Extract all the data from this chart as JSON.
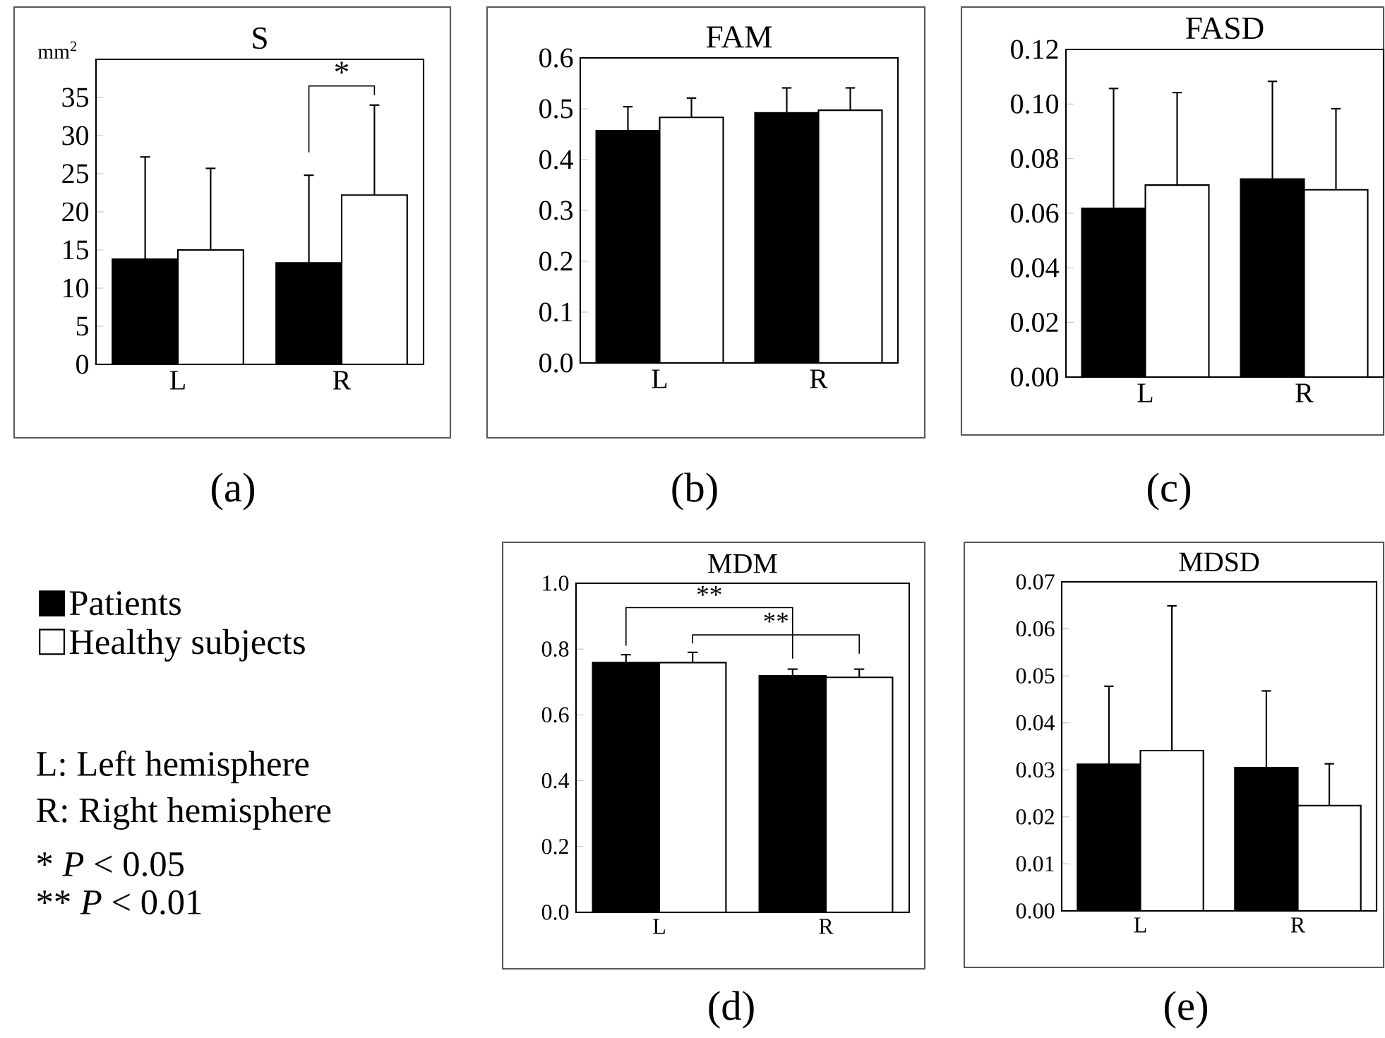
{
  "chart_data": [
    {
      "type": "bar",
      "title": "S",
      "ylabel": "mm$^{2}$",
      "xlabel": "(a)",
      "categories": [
        "L",
        "R"
      ],
      "series": [
        {
          "color": "#000000",
          "values": [
            13.8,
            13.3
          ],
          "errors": [
            [
              13.8,
              27.2
            ],
            [
              13.3,
              24.8
            ]
          ]
        },
        {
          "color": "#ffffff",
          "values": [
            15.0,
            22.2
          ],
          "errors": [
            [
              15.0,
              25.7
            ],
            [
              22.2,
              34.0
            ]
          ]
        }
      ],
      "ylim": [
        0,
        40
      ],
      "yticks": [
        0,
        5,
        10,
        15,
        20,
        25,
        30,
        35
      ],
      "annotations": [
        "*"
      ]
    },
    {
      "type": "bar",
      "title": "FAM",
      "xlabel": "(b)",
      "categories": [
        "L",
        "R"
      ],
      "series": [
        {
          "color": "#000000",
          "values": [
            0.457,
            0.492
          ],
          "errors": [
            [
              0.457,
              0.504
            ],
            [
              0.492,
              0.541
            ]
          ]
        },
        {
          "color": "#ffffff",
          "values": [
            0.483,
            0.497
          ],
          "errors": [
            [
              0.483,
              0.521
            ],
            [
              0.497,
              0.541
            ]
          ]
        }
      ],
      "ylim": [
        0,
        0.6
      ],
      "yticks": [
        {
          "value": 0,
          "label": "0.0"
        },
        0.1,
        0.2,
        0.3,
        0.4,
        0.5,
        0.6
      ]
    },
    {
      "type": "bar",
      "title": "FASD",
      "xlabel": "(c)",
      "categories": [
        "L",
        "R"
      ],
      "series": [
        {
          "color": "#000000",
          "values": [
            0.0618,
            0.0725
          ],
          "errors": [
            [
              0.0618,
              0.1057
            ],
            [
              0.0725,
              0.1083
            ]
          ]
        },
        {
          "color": "#ffffff",
          "values": [
            0.0703,
            0.0686
          ],
          "errors": [
            [
              0.0703,
              0.1042
            ],
            [
              0.0686,
              0.0983
            ]
          ]
        }
      ],
      "ylim": [
        0,
        0.12
      ],
      "yticks": [
        {
          "value": 0,
          "label": "0.00"
        },
        0.02,
        0.04,
        0.06,
        0.08,
        {
          "value": 0.1,
          "label": "0.10"
        },
        0.12
      ]
    },
    {
      "type": "bar",
      "title": "MDM",
      "xlabel": "(d)",
      "categories": [
        "L",
        "R"
      ],
      "series": [
        {
          "name": "Patients",
          "color": "#000000",
          "values": [
            0.759,
            0.719
          ],
          "errors": [
            [
              0.759,
              0.783
            ],
            [
              0.719,
              0.739
            ]
          ]
        },
        {
          "name": "Healthy subjects",
          "color": "#ffffff",
          "values": [
            0.759,
            0.714
          ],
          "errors": [
            [
              0.759,
              0.79
            ],
            [
              0.714,
              0.739
            ]
          ]
        }
      ],
      "ylim": [
        0,
        1.0
      ],
      "yticks": [
        {
          "value": 0,
          "label": "0.0"
        },
        0.2,
        0.4,
        0.6,
        0.8,
        {
          "value": 1.0,
          "label": "1.0"
        }
      ],
      "legend": "left",
      "annotations": [
        "**",
        "**",
        "L: Left hemisphere",
        "R: Right hemisphere",
        "* *P* < 0.05",
        "** *P* < 0.01"
      ]
    },
    {
      "type": "bar",
      "title": "MDSD",
      "xlabel": "(e)",
      "categories": [
        "L",
        "R"
      ],
      "series": [
        {
          "color": "#000000",
          "values": [
            0.0312,
            0.0305
          ],
          "errors": [
            [
              0.0312,
              0.0478
            ],
            [
              0.0305,
              0.0468
            ]
          ]
        },
        {
          "color": "#ffffff",
          "values": [
            0.0341,
            0.0224
          ],
          "errors": [
            [
              0.0341,
              0.0649
            ],
            [
              0.0224,
              0.0313
            ]
          ]
        }
      ],
      "ylim": [
        0,
        0.07
      ],
      "yticks": [
        {
          "value": 0,
          "label": "0.00"
        },
        0.01,
        0.02,
        0.03,
        0.04,
        0.05,
        0.06,
        0.07
      ]
    }
  ]
}
